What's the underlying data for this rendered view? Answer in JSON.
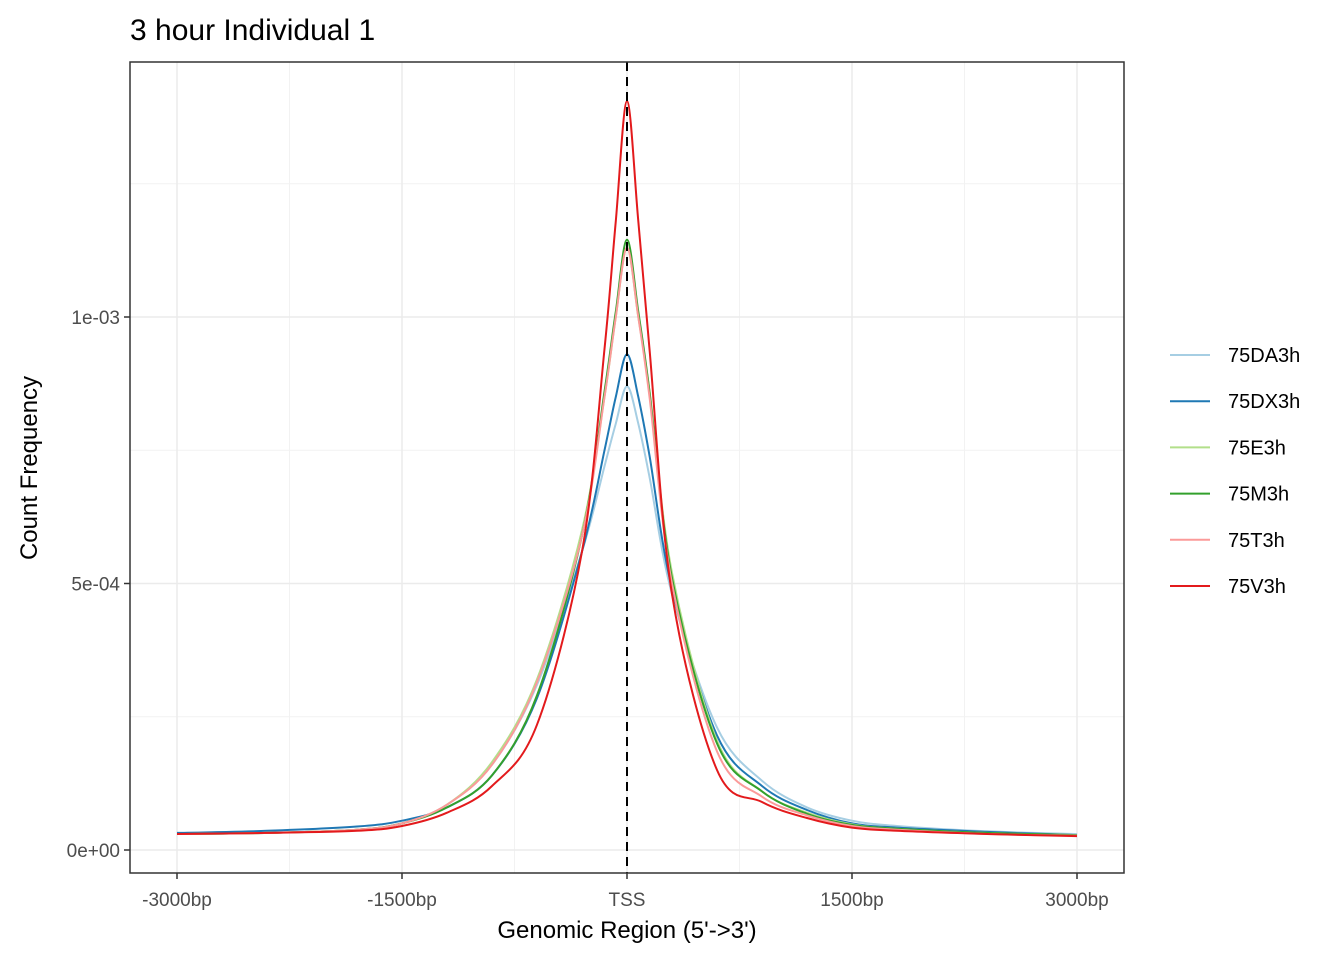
{
  "chart_data": {
    "type": "line",
    "title": "3 hour Individual 1",
    "xlabel": "Genomic Region (5'->3')",
    "ylabel": "Count Frequency",
    "x_ticks": [
      {
        "value": -3000,
        "label": "-3000bp"
      },
      {
        "value": -1500,
        "label": "-1500bp"
      },
      {
        "value": 0,
        "label": "TSS"
      },
      {
        "value": 1500,
        "label": "1500bp"
      },
      {
        "value": 3000,
        "label": "3000bp"
      }
    ],
    "y_ticks": [
      {
        "value": 0,
        "label": "0e+00"
      },
      {
        "value": 0.0005,
        "label": "5e-04"
      },
      {
        "value": 0.001,
        "label": "1e-03"
      }
    ],
    "xlim": [
      -3000,
      3000
    ],
    "ylim": [
      0,
      0.00142
    ],
    "grid": true,
    "legend_position": "right",
    "reference_line": {
      "x": 0,
      "style": "dashed",
      "color": "#000000"
    },
    "x": [
      -3000,
      -2400,
      -1800,
      -1500,
      -1200,
      -900,
      -600,
      -300,
      -150,
      -75,
      0,
      75,
      150,
      300,
      600,
      900,
      1200,
      1500,
      1800,
      2400,
      3000
    ],
    "series": [
      {
        "name": "75DA3h",
        "color": "#a6cee3",
        "values": [
          3e-05,
          3.2e-05,
          3.8e-05,
          5e-05,
          8.5e-05,
          0.00016,
          0.00031,
          0.00056,
          0.00072,
          0.0008,
          0.00087,
          0.0008,
          0.0007,
          0.00048,
          0.00023,
          0.00013,
          8e-05,
          5.5e-05,
          4.5e-05,
          3.5e-05,
          3e-05
        ]
      },
      {
        "name": "75DX3h",
        "color": "#1f78b4",
        "values": [
          3.2e-05,
          3.6e-05,
          4.4e-05,
          5.5e-05,
          8e-05,
          0.00014,
          0.000285,
          0.00056,
          0.00075,
          0.00085,
          0.00093,
          0.00085,
          0.00074,
          0.00049,
          0.000215,
          0.00012,
          7.5e-05,
          5e-05,
          4.2e-05,
          3.4e-05,
          2.8e-05
        ]
      },
      {
        "name": "75E3h",
        "color": "#b2df8a",
        "values": [
          3e-05,
          3.2e-05,
          3.8e-05,
          5e-05,
          8.5e-05,
          0.000165,
          0.00032,
          0.0006,
          0.00085,
          0.001,
          0.00113,
          0.001,
          0.00086,
          0.00052,
          0.000205,
          0.00011,
          7e-05,
          4.8e-05,
          4e-05,
          3.2e-05,
          2.8e-05
        ]
      },
      {
        "name": "75M3h",
        "color": "#33a02c",
        "values": [
          3e-05,
          3.2e-05,
          3.8e-05,
          5e-05,
          8e-05,
          0.00014,
          0.00029,
          0.00059,
          0.00086,
          0.00101,
          0.001145,
          0.00101,
          0.00086,
          0.00051,
          0.0002,
          0.00011,
          6.8e-05,
          4.7e-05,
          4e-05,
          3.2e-05,
          2.8e-05
        ]
      },
      {
        "name": "75T3h",
        "color": "#fb9a99",
        "values": [
          3e-05,
          3.2e-05,
          3.8e-05,
          5e-05,
          8.5e-05,
          0.00016,
          0.000315,
          0.00059,
          0.00085,
          0.001,
          0.00113,
          0.001,
          0.00085,
          0.0005,
          0.000185,
          0.0001,
          6.5e-05,
          4.5e-05,
          3.8e-05,
          3e-05,
          2.7e-05
        ]
      },
      {
        "name": "75V3h",
        "color": "#e31a1c",
        "values": [
          3e-05,
          3.2e-05,
          3.6e-05,
          4.5e-05,
          7e-05,
          0.00012,
          0.000235,
          0.00056,
          0.00094,
          0.00118,
          0.001405,
          0.00118,
          0.00094,
          0.00048,
          0.00015,
          9e-05,
          6e-05,
          4.2e-05,
          3.6e-05,
          3e-05,
          2.6e-05
        ]
      }
    ]
  }
}
